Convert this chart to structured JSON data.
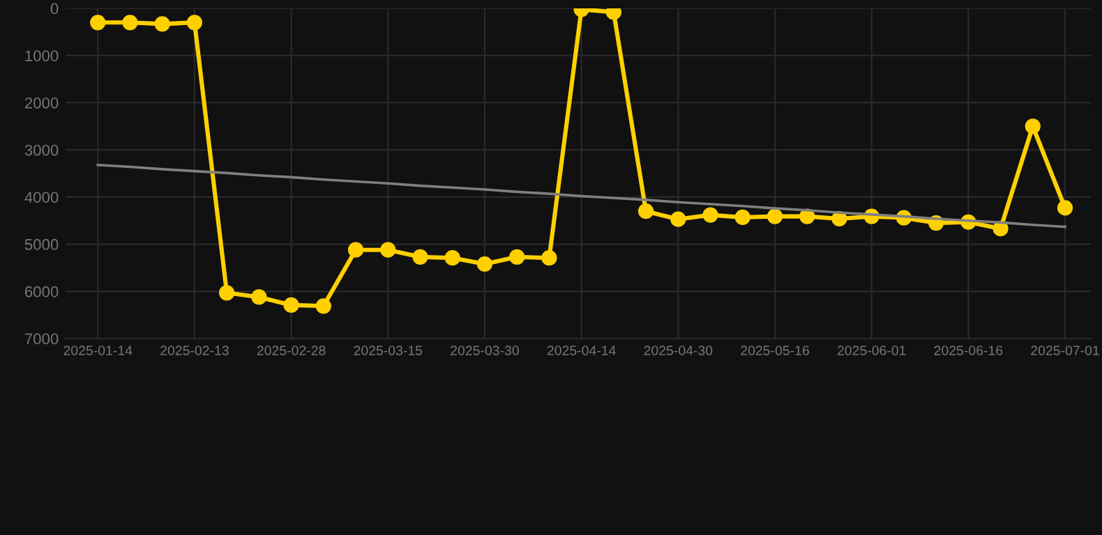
{
  "chart_data": {
    "type": "line",
    "categories": [
      "2025-01-14",
      null,
      null,
      "2025-02-13",
      null,
      null,
      "2025-02-28",
      null,
      null,
      "2025-03-15",
      null,
      null,
      "2025-03-30",
      null,
      null,
      "2025-04-14",
      null,
      null,
      "2025-04-30",
      null,
      null,
      "2025-05-16",
      null,
      null,
      "2025-06-01",
      null,
      null,
      "2025-06-16",
      null,
      null,
      "2025-07-01"
    ],
    "series": [
      {
        "color": "#ffd000",
        "marker": "circle",
        "values": [
          300,
          300,
          330,
          300,
          6030,
          6120,
          6290,
          6310,
          5120,
          5120,
          5270,
          5290,
          5420,
          5270,
          5290,
          20,
          80,
          4300,
          4470,
          4380,
          4430,
          4410,
          4410,
          4460,
          4410,
          4440,
          4550,
          4530,
          4670,
          2500,
          4230
        ]
      },
      {
        "color": "#808080",
        "marker": "none",
        "values": [
          3320,
          3360,
          3410,
          3450,
          3490,
          3540,
          3580,
          3630,
          3670,
          3710,
          3760,
          3800,
          3840,
          3890,
          3930,
          3980,
          4020,
          4060,
          4110,
          4150,
          4190,
          4240,
          4280,
          4330,
          4370,
          4410,
          4460,
          4500,
          4540,
          4590,
          4630
        ]
      }
    ],
    "ylim": [
      7000,
      0
    ],
    "yticks": [
      0,
      1000,
      2000,
      3000,
      4000,
      5000,
      6000,
      7000
    ],
    "grid": true,
    "legend": false
  }
}
